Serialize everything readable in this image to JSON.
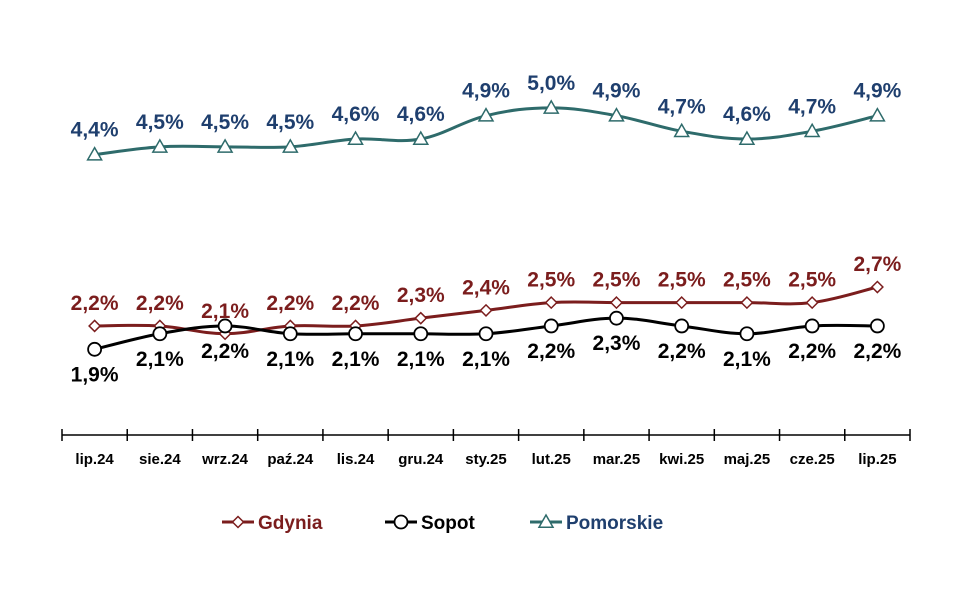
{
  "chart_data": {
    "type": "line",
    "categories": [
      "lip.24",
      "sie.24",
      "wrz.24",
      "paź.24",
      "lis.24",
      "gru.24",
      "sty.25",
      "lut.25",
      "mar.25",
      "kwi.25",
      "maj.25",
      "cze.25",
      "lip.25"
    ],
    "series": [
      {
        "name": "Gdynia",
        "color": "#7b1d1d",
        "marker": "diamond",
        "values": [
          2.2,
          2.2,
          2.1,
          2.2,
          2.2,
          2.3,
          2.4,
          2.5,
          2.5,
          2.5,
          2.5,
          2.5,
          2.7
        ],
        "labels": [
          "2,2%",
          "2,2%",
          "2,1%",
          "2,2%",
          "2,2%",
          "2,3%",
          "2,4%",
          "2,5%",
          "2,5%",
          "2,5%",
          "2,5%",
          "2,5%",
          "2,7%"
        ]
      },
      {
        "name": "Sopot",
        "color": "#000000",
        "marker": "circle",
        "values": [
          1.9,
          2.1,
          2.2,
          2.1,
          2.1,
          2.1,
          2.1,
          2.2,
          2.3,
          2.2,
          2.1,
          2.2,
          2.2
        ],
        "labels": [
          "1,9%",
          "2,1%",
          "2,2%",
          "2,1%",
          "2,1%",
          "2,1%",
          "2,1%",
          "2,2%",
          "2,3%",
          "2,2%",
          "2,1%",
          "2,2%",
          "2,2%"
        ]
      },
      {
        "name": "Pomorskie",
        "color": "#2e6b6b",
        "label_color": "#1f3f6e",
        "marker": "triangle",
        "values": [
          4.4,
          4.5,
          4.5,
          4.5,
          4.6,
          4.6,
          4.9,
          5.0,
          4.9,
          4.7,
          4.6,
          4.7,
          4.9
        ],
        "labels": [
          "4,4%",
          "4,5%",
          "4,5%",
          "4,5%",
          "4,6%",
          "4,6%",
          "4,9%",
          "5,0%",
          "4,9%",
          "4,7%",
          "4,6%",
          "4,7%",
          "4,9%"
        ]
      }
    ],
    "title": "",
    "xlabel": "",
    "ylabel": "",
    "ylim": [
      0.8,
      6.0
    ],
    "grid": false,
    "legend_placement": "bottom-center"
  }
}
